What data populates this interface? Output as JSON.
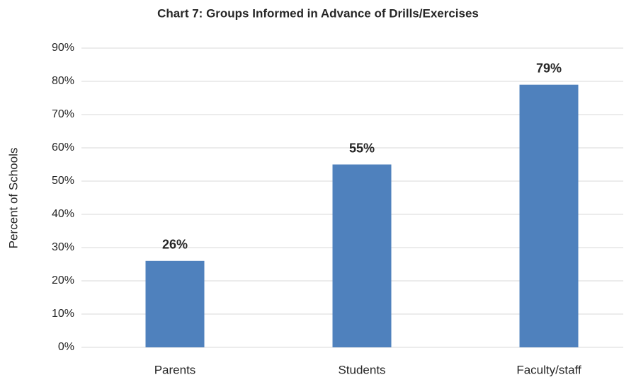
{
  "chart_data": {
    "type": "bar",
    "title": "Chart 7: Groups Informed in Advance of Drills/Exercises",
    "y_label": "Percent of Schools",
    "categories": [
      "Parents",
      "Students",
      "Faculty/staff"
    ],
    "values": [
      26,
      55,
      79
    ],
    "value_labels": [
      "26%",
      "55%",
      "79%"
    ],
    "color": "#4f81bd",
    "ylim": [
      0,
      90
    ],
    "yticks": [
      {
        "value": 0,
        "label": "0%"
      },
      {
        "value": 10,
        "label": "10%"
      },
      {
        "value": 20,
        "label": "20%"
      },
      {
        "value": 30,
        "label": "30%"
      },
      {
        "value": 40,
        "label": "40%"
      },
      {
        "value": 50,
        "label": "50%"
      },
      {
        "value": 60,
        "label": "60%"
      },
      {
        "value": 70,
        "label": "70%"
      },
      {
        "value": 80,
        "label": "80%"
      },
      {
        "value": 90,
        "label": "90%"
      }
    ],
    "grid": true
  }
}
